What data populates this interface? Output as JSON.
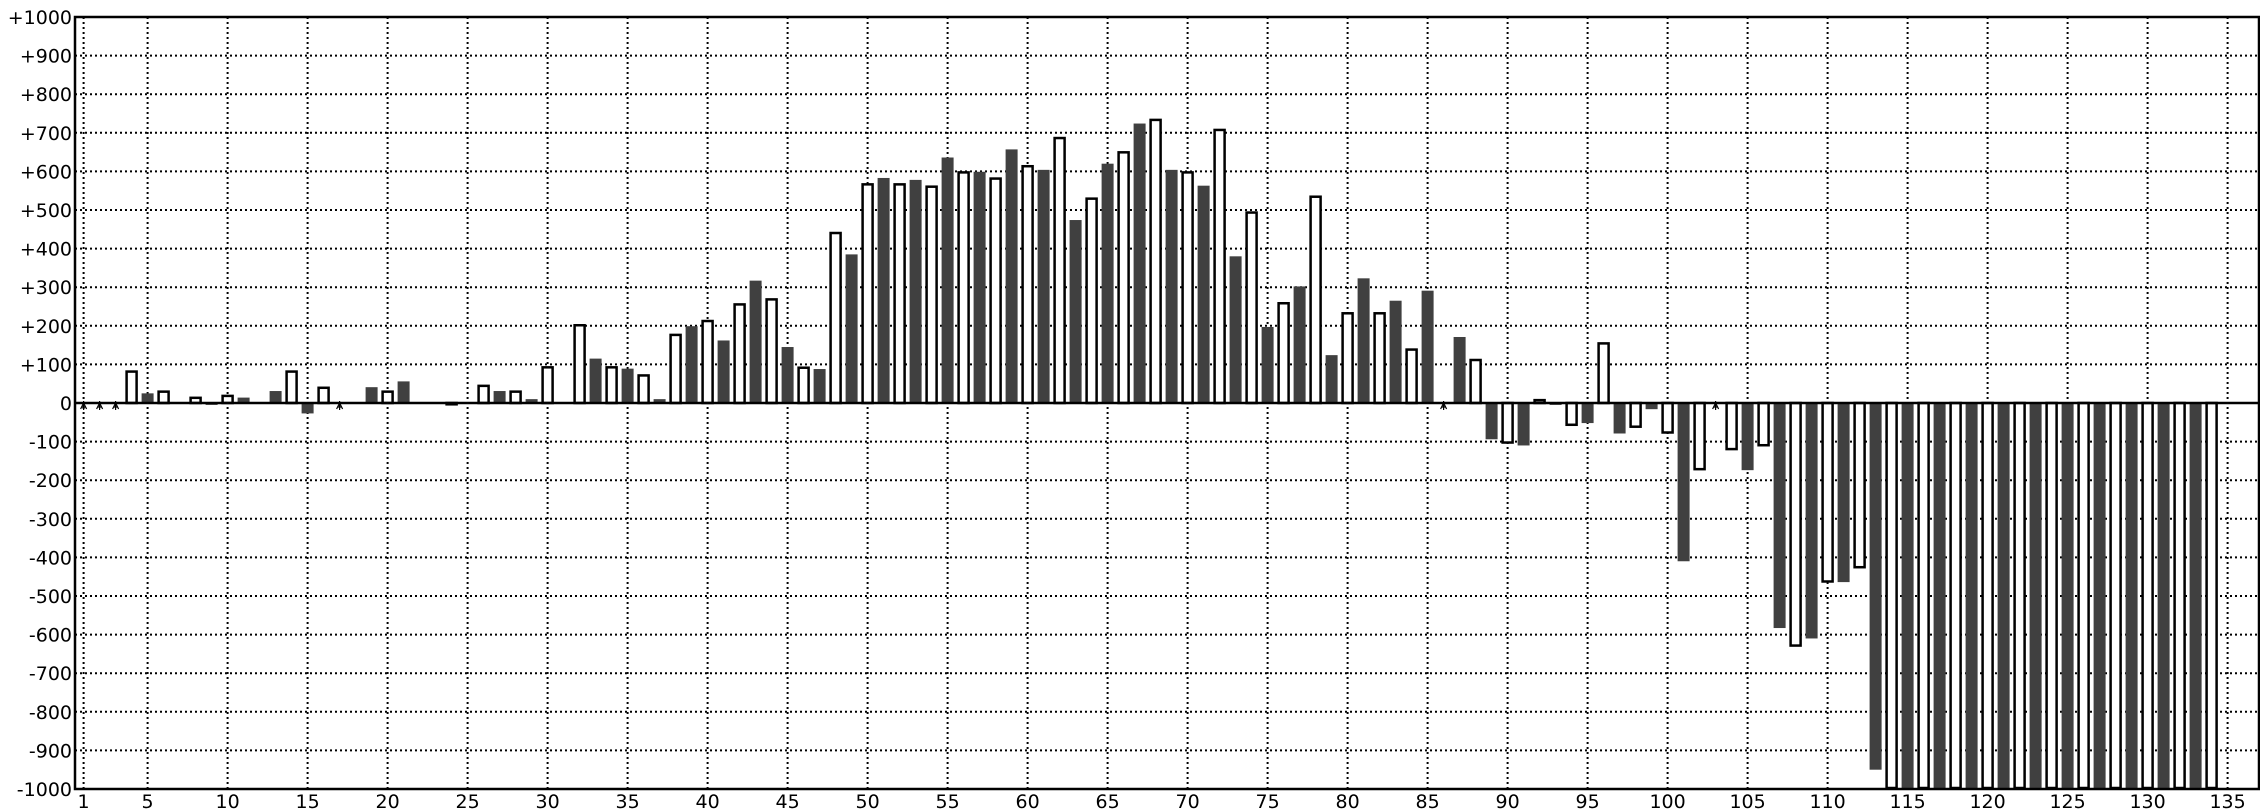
{
  "chart_data": {
    "type": "bar",
    "title": "",
    "xlabel": "",
    "ylabel": "",
    "xlim": [
      1,
      135
    ],
    "ylim": [
      -1000,
      1000
    ],
    "grid": true,
    "grid_style": "dotted",
    "legend": "none",
    "colors": {
      "odd_bar_fill": "#404040",
      "even_bar_fill": "#ffffff",
      "even_bar_stroke": "#000000"
    },
    "y_ticks": [
      {
        "value": 1000,
        "label": "+1000"
      },
      {
        "value": 900,
        "label": "+900"
      },
      {
        "value": 800,
        "label": "+800"
      },
      {
        "value": 700,
        "label": "+700"
      },
      {
        "value": 600,
        "label": "+600"
      },
      {
        "value": 500,
        "label": "+500"
      },
      {
        "value": 400,
        "label": "+400"
      },
      {
        "value": 300,
        "label": "+300"
      },
      {
        "value": 200,
        "label": "+200"
      },
      {
        "value": 100,
        "label": "+100"
      },
      {
        "value": 0,
        "label": "0"
      },
      {
        "value": -100,
        "label": "-100"
      },
      {
        "value": -200,
        "label": "-200"
      },
      {
        "value": -300,
        "label": "-300"
      },
      {
        "value": -400,
        "label": "-400"
      },
      {
        "value": -500,
        "label": "-500"
      },
      {
        "value": -600,
        "label": "-600"
      },
      {
        "value": -700,
        "label": "-700"
      },
      {
        "value": -800,
        "label": "-800"
      },
      {
        "value": -900,
        "label": "-900"
      },
      {
        "value": -1000,
        "label": "-1000"
      }
    ],
    "x_ticks": [
      {
        "value": 1,
        "label": "1"
      },
      {
        "value": 5,
        "label": "5"
      },
      {
        "value": 10,
        "label": "10"
      },
      {
        "value": 15,
        "label": "15"
      },
      {
        "value": 20,
        "label": "20"
      },
      {
        "value": 25,
        "label": "25"
      },
      {
        "value": 30,
        "label": "30"
      },
      {
        "value": 35,
        "label": "35"
      },
      {
        "value": 40,
        "label": "40"
      },
      {
        "value": 45,
        "label": "45"
      },
      {
        "value": 50,
        "label": "50"
      },
      {
        "value": 55,
        "label": "55"
      },
      {
        "value": 60,
        "label": "60"
      },
      {
        "value": 65,
        "label": "65"
      },
      {
        "value": 70,
        "label": "70"
      },
      {
        "value": 75,
        "label": "75"
      },
      {
        "value": 80,
        "label": "80"
      },
      {
        "value": 85,
        "label": "85"
      },
      {
        "value": 90,
        "label": "90"
      },
      {
        "value": 95,
        "label": "95"
      },
      {
        "value": 100,
        "label": "100"
      },
      {
        "value": 105,
        "label": "105"
      },
      {
        "value": 110,
        "label": "110"
      },
      {
        "value": 115,
        "label": "115"
      },
      {
        "value": 120,
        "label": "120"
      },
      {
        "value": 125,
        "label": "125"
      },
      {
        "value": 130,
        "label": "130"
      },
      {
        "value": 135,
        "label": "135"
      }
    ],
    "missing_markers": [
      1,
      2,
      3,
      17,
      86,
      103
    ],
    "values": [
      null,
      null,
      null,
      84,
      25,
      32,
      0,
      16,
      -5,
      21,
      14,
      0,
      31,
      84,
      -27,
      42,
      null,
      0,
      41,
      32,
      56,
      0,
      0,
      -6,
      0,
      47,
      31,
      32,
      10,
      95,
      0,
      204,
      115,
      95,
      89,
      74,
      10,
      179,
      199,
      215,
      162,
      258,
      317,
      271,
      145,
      94,
      88,
      443,
      385,
      569,
      583,
      569,
      578,
      563,
      636,
      600,
      599,
      584,
      657,
      616,
      604,
      689,
      474,
      532,
      620,
      652,
      724,
      736,
      604,
      600,
      563,
      710,
      380,
      496,
      197,
      261,
      302,
      537,
      124,
      235,
      323,
      235,
      265,
      141,
      291,
      null,
      171,
      114,
      -94,
      -105,
      -110,
      10,
      -5,
      -59,
      -52,
      157,
      -79,
      -64,
      -16,
      -79,
      -410,
      -174,
      null,
      -122,
      -174,
      -112,
      -583,
      -631,
      -610,
      -465,
      -464,
      -428,
      -950,
      -1000,
      -1000,
      -1000,
      -1000,
      -1000,
      -1000,
      -1000,
      -1000,
      -1000,
      -1000,
      -1000,
      -1000,
      -1000,
      -1000,
      -1000,
      -1000,
      -1000,
      -1000,
      -1000,
      -1000,
      -1000
    ]
  }
}
